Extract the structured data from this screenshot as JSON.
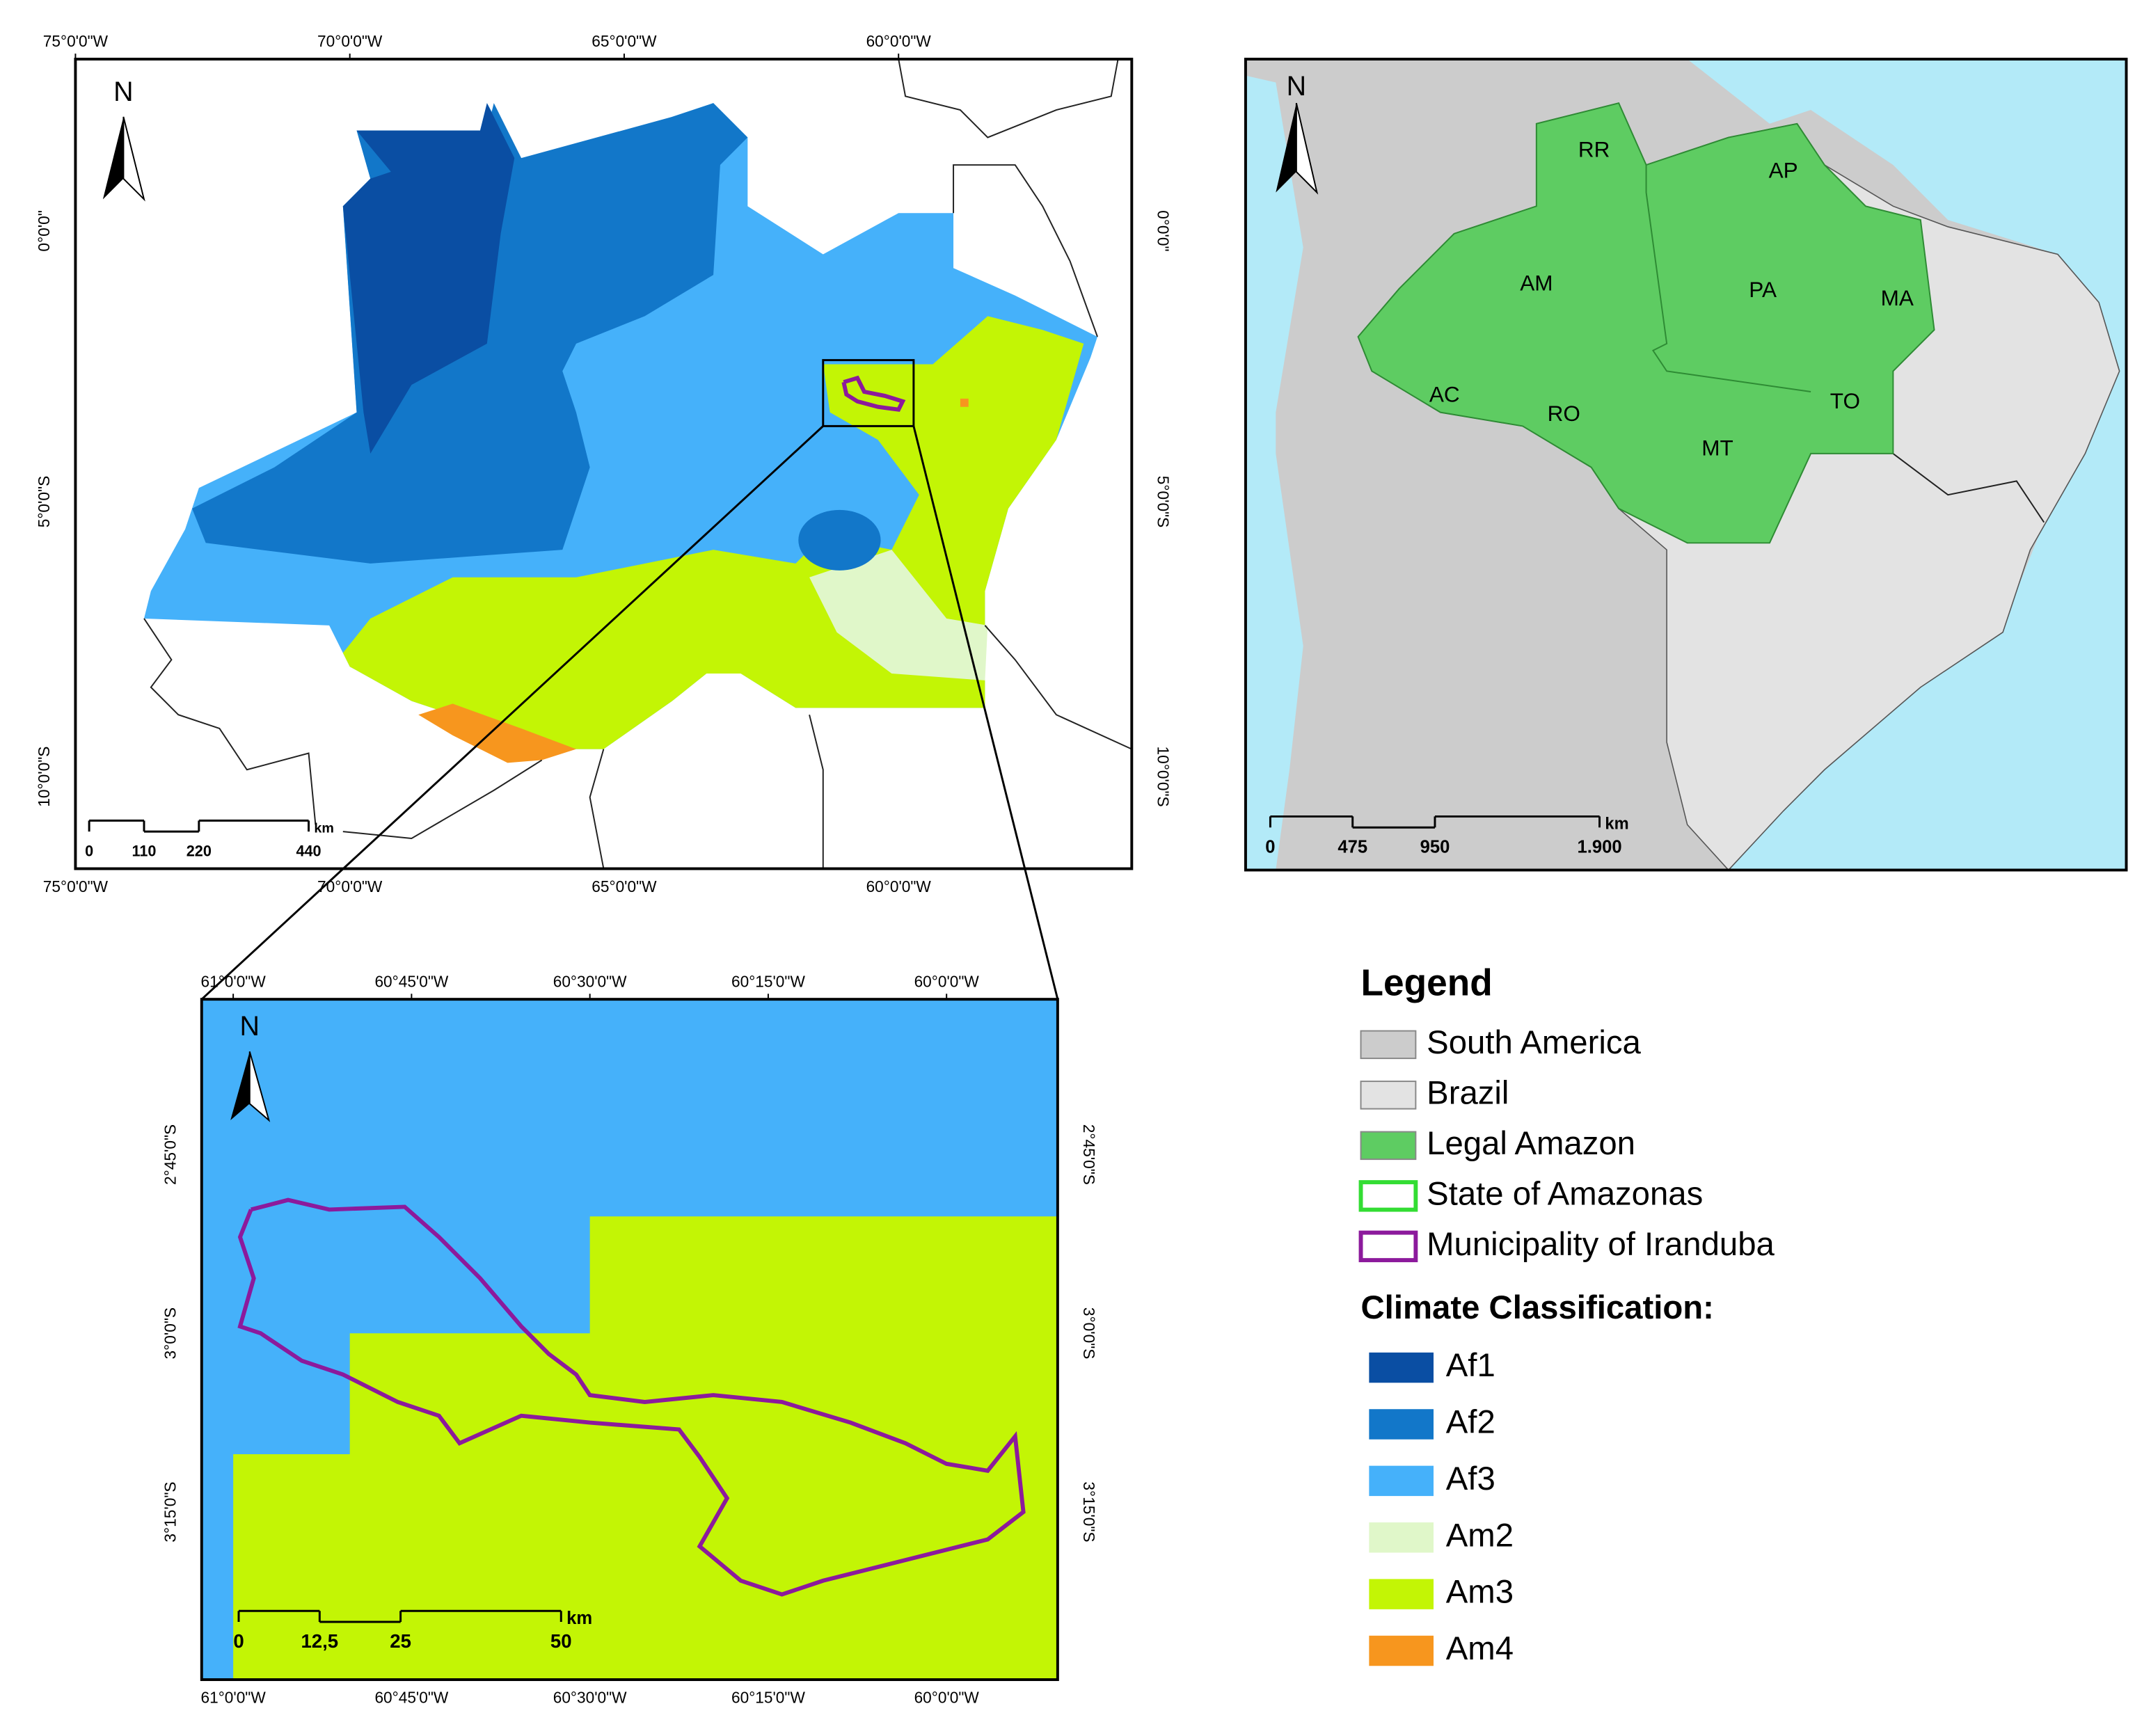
{
  "main_map": {
    "longitude_labels": [
      "75°0'0\"W",
      "70°0'0\"W",
      "65°0'0\"W",
      "60°0'0\"W"
    ],
    "latitude_labels": [
      "0°0'0\"",
      "5°0'0\"S",
      "10°0'0\"S"
    ],
    "north": "N",
    "scale_bar": {
      "labels": [
        "0",
        "110",
        "220",
        "440"
      ],
      "unit": "km"
    }
  },
  "overview_map": {
    "north": "N",
    "state_labels": [
      "RR",
      "AP",
      "AM",
      "PA",
      "MA",
      "AC",
      "RO",
      "TO",
      "MT"
    ],
    "scale_bar": {
      "labels": [
        "0",
        "475",
        "950",
        "1.900"
      ],
      "unit": "km"
    }
  },
  "detail_map": {
    "longitude_labels": [
      "61°0'0\"W",
      "60°45'0\"W",
      "60°30'0\"W",
      "60°15'0\"W",
      "60°0'0\"W"
    ],
    "latitude_labels": [
      "2°45'0\"S",
      "3°0'0\"S",
      "3°15'0\"S"
    ],
    "north": "N",
    "scale_bar": {
      "labels": [
        "0",
        "12,5",
        "25",
        "50"
      ],
      "unit": "km"
    }
  },
  "legend": {
    "title": "Legend",
    "items": [
      {
        "label": "South America",
        "color": "#cccccc",
        "style": "fill"
      },
      {
        "label": "Brazil",
        "color": "#e3e3e3",
        "style": "fill"
      },
      {
        "label": "Legal Amazon",
        "color": "#5ecc62",
        "style": "fill"
      },
      {
        "label": "State of Amazonas",
        "color": "#33dd33",
        "style": "outline"
      },
      {
        "label": "Municipality of Iranduba",
        "color": "#8c1a9c",
        "style": "outline"
      }
    ],
    "climate_title": "Climate Classification:",
    "climate_classes": [
      {
        "label": "Af1",
        "color": "#0a4ea3"
      },
      {
        "label": "Af2",
        "color": "#1277c9"
      },
      {
        "label": "Af3",
        "color": "#45b1fa"
      },
      {
        "label": "Am2",
        "color": "#e0f7c9"
      },
      {
        "label": "Am3",
        "color": "#c3f505"
      },
      {
        "label": "Am4",
        "color": "#f7961e"
      }
    ]
  }
}
